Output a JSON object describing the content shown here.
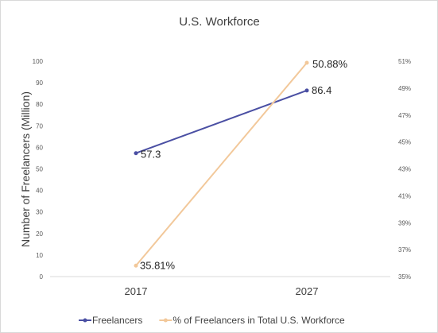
{
  "chart_data": {
    "type": "line",
    "title": "U.S. Workforce",
    "categories": [
      "2017",
      "2027"
    ],
    "ylabel": "Number of Freelancers (Million)",
    "y2label": "",
    "ylim": [
      0,
      100
    ],
    "yticks": [
      "0",
      "10",
      "20",
      "30",
      "40",
      "50",
      "60",
      "70",
      "80",
      "90",
      "100"
    ],
    "y2lim": [
      35,
      51
    ],
    "y2ticks": [
      "35%",
      "37%",
      "39%",
      "41%",
      "43%",
      "45%",
      "47%",
      "49%",
      "51%"
    ],
    "grid": false,
    "legend_position": "bottom",
    "series": [
      {
        "name": "Freelancers",
        "axis": "left",
        "values": [
          57.3,
          86.4
        ],
        "labels": [
          "57.3",
          "86.4"
        ],
        "color": "#4a4fa3"
      },
      {
        "name": "% of Freelancers in Total U.S. Workforce",
        "axis": "right",
        "values": [
          35.81,
          50.88
        ],
        "labels": [
          "35.81%",
          "50.88%"
        ],
        "color": "#f2c89a"
      }
    ]
  }
}
